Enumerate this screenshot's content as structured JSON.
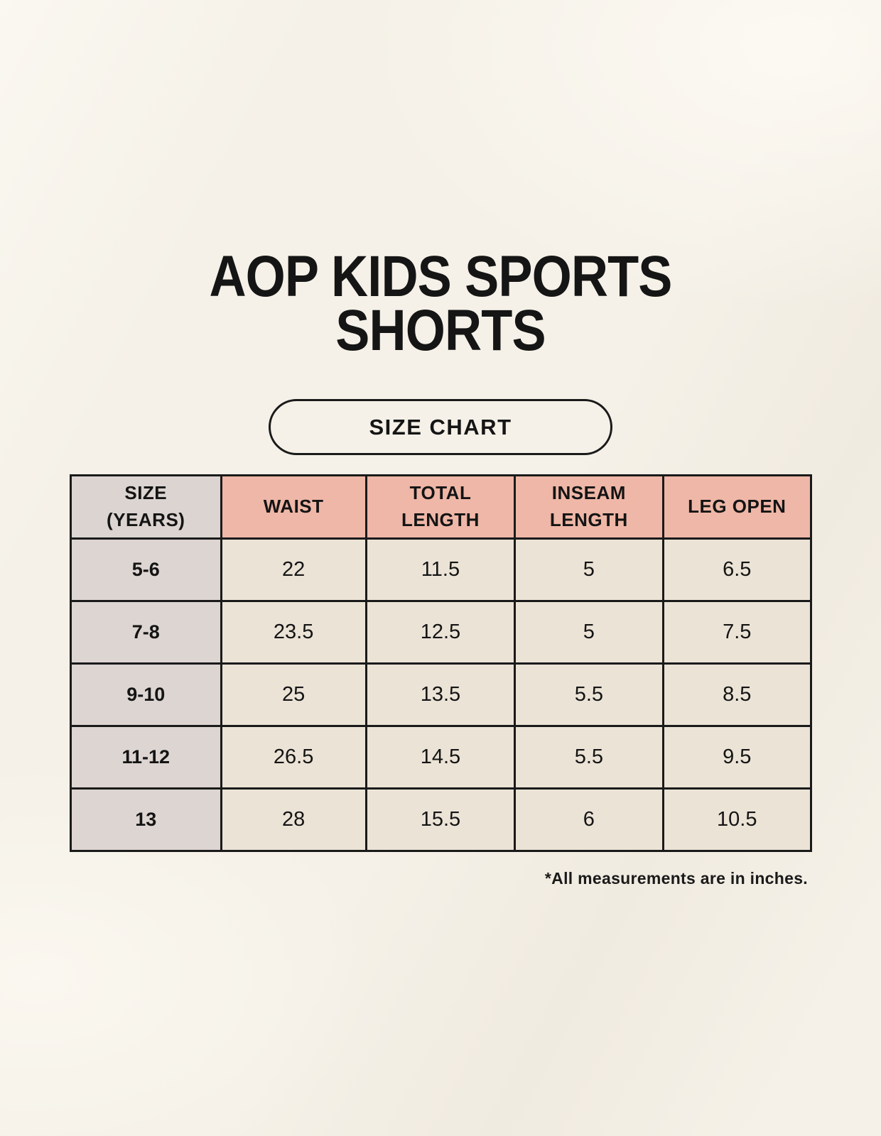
{
  "title": {
    "line1": "AOP KIDS SPORTS",
    "line2": "SHORTS"
  },
  "badge": {
    "label": "SIZE CHART"
  },
  "table": {
    "columns": [
      "SIZE\n(YEARS)",
      "WAIST",
      "TOTAL\nLENGTH",
      "INSEAM\nLENGTH",
      "LEG OPEN"
    ],
    "rows": [
      {
        "size": "5-6",
        "values": [
          "22",
          "11.5",
          "5",
          "6.5"
        ]
      },
      {
        "size": "7-8",
        "values": [
          "23.5",
          "12.5",
          "5",
          "7.5"
        ]
      },
      {
        "size": "9-10",
        "values": [
          "25",
          "13.5",
          "5.5",
          "8.5"
        ]
      },
      {
        "size": "11-12",
        "values": [
          "26.5",
          "14.5",
          "5.5",
          "9.5"
        ]
      },
      {
        "size": "13",
        "values": [
          "28",
          "15.5",
          "6",
          "10.5"
        ]
      }
    ]
  },
  "footnote": "*All measurements are in inches.",
  "colors": {
    "page_bg": "#f5f1e8",
    "header_pink": "#efb7a7",
    "size_col_grey": "#ddd5d2",
    "cell_cream": "#ebe3d6",
    "border": "#1a1a1a",
    "text": "#141414"
  },
  "chart_data": {
    "type": "table",
    "title": "AOP KIDS SPORTS SHORTS",
    "subtitle": "SIZE CHART",
    "unit": "inches",
    "columns": [
      "SIZE (YEARS)",
      "WAIST",
      "TOTAL LENGTH",
      "INSEAM LENGTH",
      "LEG OPEN"
    ],
    "rows": [
      [
        "5-6",
        22,
        11.5,
        5,
        6.5
      ],
      [
        "7-8",
        23.5,
        12.5,
        5,
        7.5
      ],
      [
        "9-10",
        25,
        13.5,
        5.5,
        8.5
      ],
      [
        "11-12",
        26.5,
        14.5,
        5.5,
        9.5
      ],
      [
        "13",
        28,
        15.5,
        6,
        10.5
      ]
    ],
    "footnote": "*All measurements are in inches."
  }
}
